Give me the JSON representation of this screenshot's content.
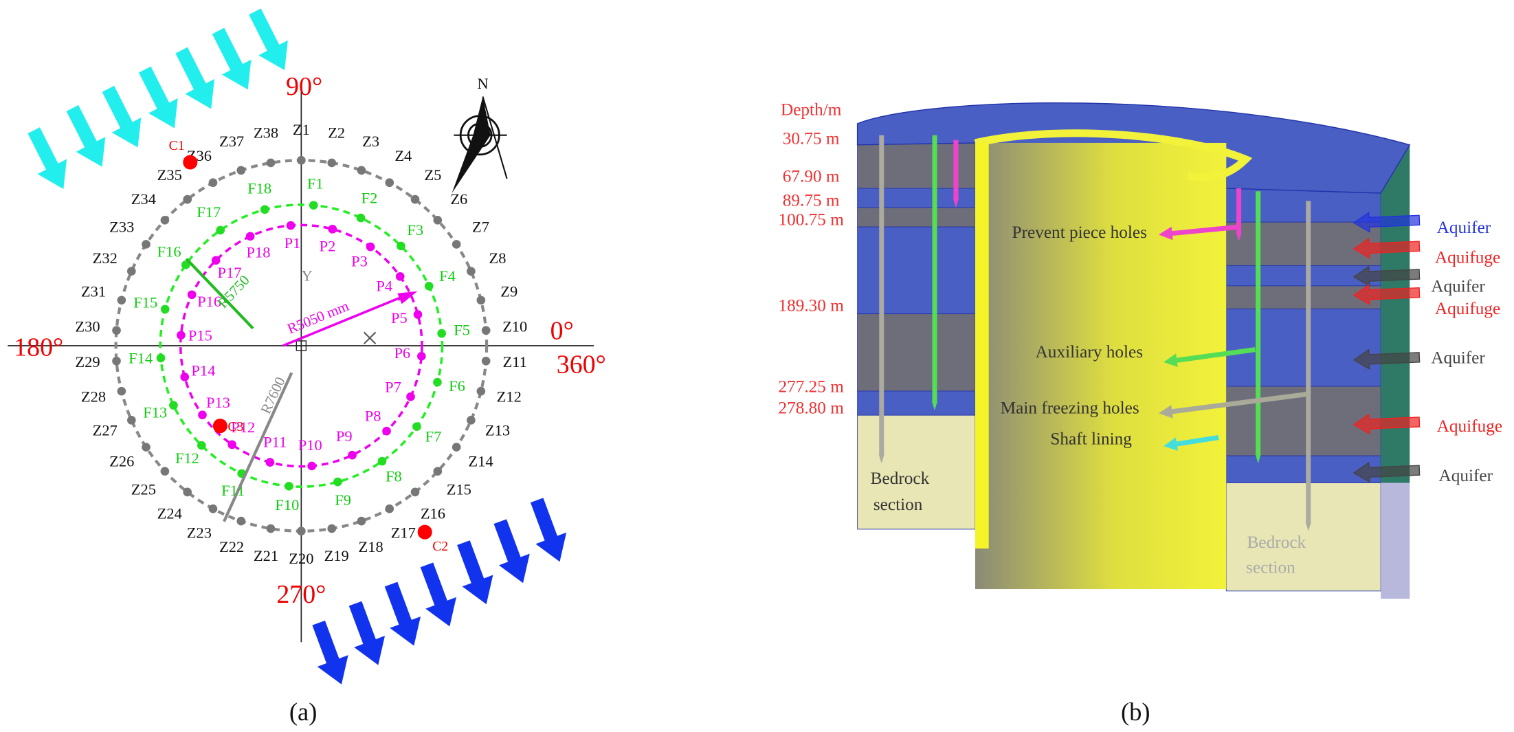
{
  "panel_a": {
    "label": "(a)",
    "angle_labels": [
      "90°",
      "180°",
      "0°",
      "360°",
      "270°"
    ],
    "compass": "N",
    "axis_y": "Y",
    "z_holes": [
      "Z1",
      "Z2",
      "Z3",
      "Z4",
      "Z5",
      "Z6",
      "Z7",
      "Z8",
      "Z9",
      "Z10",
      "Z11",
      "Z12",
      "Z13",
      "Z14",
      "Z15",
      "Z16",
      "Z17",
      "Z18",
      "Z19",
      "Z20",
      "Z21",
      "Z22",
      "Z23",
      "Z24",
      "Z25",
      "Z26",
      "Z27",
      "Z28",
      "Z29",
      "Z30",
      "Z31",
      "Z32",
      "Z33",
      "Z34",
      "Z35",
      "Z36",
      "Z37",
      "Z38"
    ],
    "f_holes": [
      "F1",
      "F2",
      "F3",
      "F4",
      "F5",
      "F6",
      "F7",
      "F8",
      "F9",
      "F10",
      "F11",
      "F12",
      "F13",
      "F14",
      "F15",
      "F16",
      "F17",
      "F18"
    ],
    "p_holes": [
      "P1",
      "P2",
      "P3",
      "P4",
      "P5",
      "P6",
      "P7",
      "P8",
      "P9",
      "P10",
      "P11",
      "P12",
      "P13",
      "P14",
      "P15",
      "P16",
      "P17",
      "P18"
    ],
    "measuring_points": [
      "C1",
      "C2",
      "C3"
    ],
    "radii": [
      "R5750",
      "R5050 mm",
      "R7600"
    ]
  },
  "panel_b": {
    "label": "(b)",
    "depth_title": "Depth/m",
    "depths": [
      "30.75 m",
      "67.90 m",
      "89.75 m",
      "100.75 m",
      "189.30 m",
      "277.25 m",
      "278.80 m"
    ],
    "strata": [
      {
        "text": "Aquifer",
        "color": "#2233dd"
      },
      {
        "text": "Aquifuge",
        "color": "#ee2222"
      },
      {
        "text": "Aquifer",
        "color": "#444444"
      },
      {
        "text": "Aquifuge",
        "color": "#ee2222"
      },
      {
        "text": "Aquifer",
        "color": "#444444"
      },
      {
        "text": "Aquifuge",
        "color": "#ee2222"
      },
      {
        "text": "Aquifer",
        "color": "#444444"
      }
    ],
    "hole_labels": [
      "Prevent piece holes",
      "Auxiliary holes",
      "Main freezing holes",
      "Shaft lining"
    ],
    "bedrock_left": [
      "Bedrock",
      "section"
    ],
    "bedrock_right": [
      "Bedrock",
      "section"
    ]
  }
}
